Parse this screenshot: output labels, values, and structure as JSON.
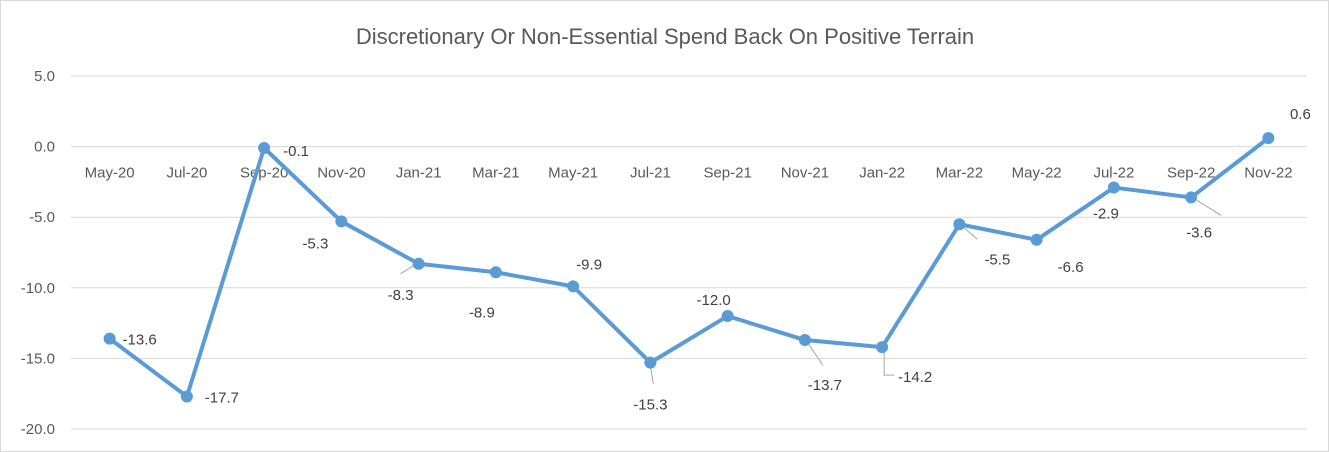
{
  "chart_data": {
    "type": "line",
    "title": "Discretionary Or Non-Essential Spend Back On Positive Terrain",
    "xlabel": "",
    "ylabel": "",
    "ylim": [
      -20,
      5
    ],
    "yticks": [
      5,
      0,
      -5,
      -10,
      -15,
      -20
    ],
    "ytick_labels": [
      "5.0",
      "0.0",
      "-5.0",
      "-10.0",
      "-15.0",
      "-20.0"
    ],
    "grid": true,
    "legend": "none",
    "categories": [
      "May-20",
      "Jul-20",
      "Sep-20",
      "Nov-20",
      "Jan-21",
      "Mar-21",
      "May-21",
      "Jul-21",
      "Sep-21",
      "Nov-21",
      "Jan-22",
      "Mar-22",
      "May-22",
      "Jul-22",
      "Sep-22",
      "Nov-22"
    ],
    "series": [
      {
        "values": [
          -13.6,
          -17.7,
          -0.1,
          -5.3,
          -8.3,
          -8.9,
          -9.9,
          -15.3,
          -12.0,
          -13.7,
          -14.2,
          -5.5,
          -6.6,
          -2.9,
          -3.6,
          0.6
        ],
        "labels": [
          "-13.6",
          "-17.7",
          "-0.1",
          "-5.3",
          "-8.3",
          "-8.9",
          "-9.9",
          "-15.3",
          "-12.0",
          "-13.7",
          "-14.2",
          "-5.5",
          "-6.6",
          "-2.9",
          "-3.6",
          "0.6"
        ],
        "color": "#5b9bd5"
      }
    ],
    "colors": {
      "line": "#5b9bd5",
      "gridline": "#d9d9d9",
      "text": "#595959",
      "leader": "#a6a6a6"
    }
  }
}
